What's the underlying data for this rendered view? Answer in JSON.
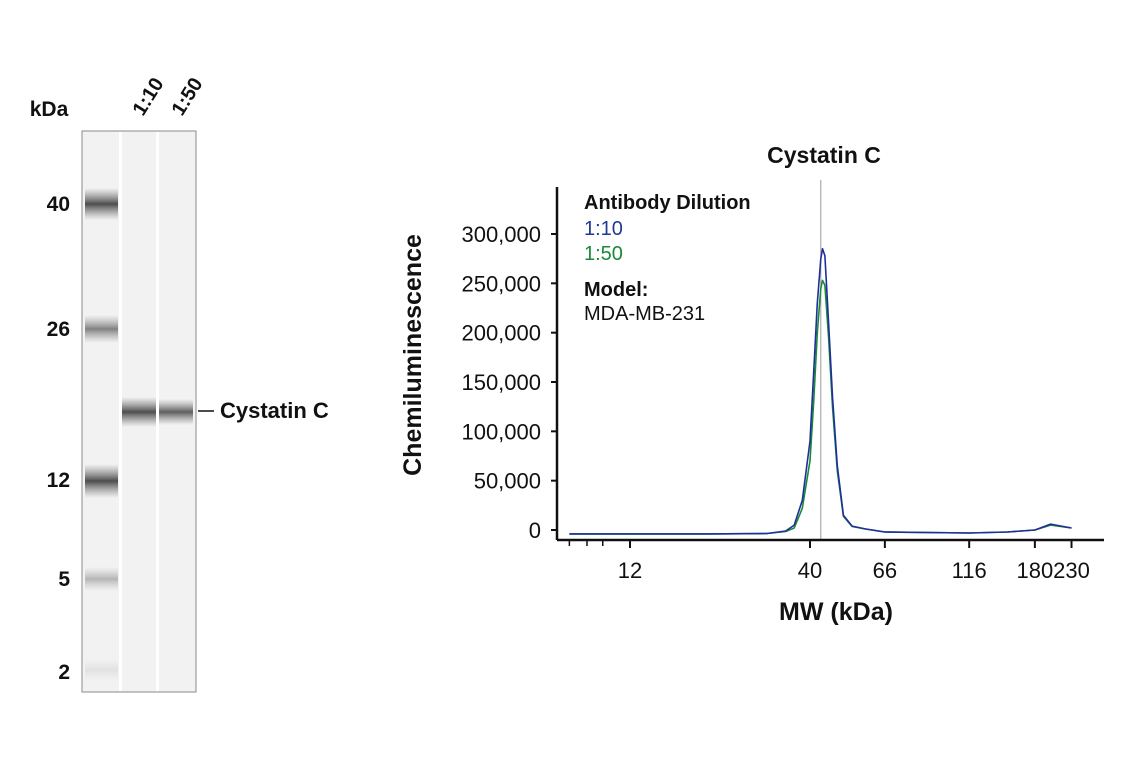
{
  "blot": {
    "unit_label": "kDa",
    "lane_labels": [
      "1:10",
      "1:50"
    ],
    "markers": [
      {
        "label": "40",
        "value": 40
      },
      {
        "label": "26",
        "value": 26
      },
      {
        "label": "12",
        "value": 12
      },
      {
        "label": "5",
        "value": 5
      },
      {
        "label": "2",
        "value": 2
      }
    ],
    "band_label": "Cystatin C"
  },
  "chart_data": {
    "type": "line",
    "title": "Cystatin C",
    "xlabel": "MW (kDa)",
    "ylabel": "Chemiluminescence",
    "x_ticks": [
      "12",
      "40",
      "66",
      "116",
      "180",
      "230"
    ],
    "y_ticks": [
      "0",
      "50,000",
      "100,000",
      "150,000",
      "200,000",
      "250,000",
      "300,000"
    ],
    "ylim": [
      0,
      310000
    ],
    "peak_marker_x": 43,
    "legend": {
      "heading": "Antibody Dilution",
      "model_heading": "Model:",
      "model_value": "MDA-MB-231"
    },
    "series": [
      {
        "name": "1:10",
        "color": "#1f2f9a",
        "points": [
          [
            8,
            -4000
          ],
          [
            20,
            -4000
          ],
          [
            30,
            -3500
          ],
          [
            34,
            -1000
          ],
          [
            36,
            5000
          ],
          [
            38,
            30000
          ],
          [
            40,
            90000
          ],
          [
            41,
            160000
          ],
          [
            42,
            230000
          ],
          [
            43,
            275000
          ],
          [
            43.5,
            285000
          ],
          [
            44.2,
            278000
          ],
          [
            45.3,
            210000
          ],
          [
            46.5,
            135000
          ],
          [
            48,
            65000
          ],
          [
            50,
            15000
          ],
          [
            53,
            4000
          ],
          [
            58,
            1000
          ],
          [
            66,
            -2000
          ],
          [
            116,
            -3000
          ],
          [
            150,
            -2000
          ],
          [
            180,
            0
          ],
          [
            200,
            6000
          ],
          [
            230,
            2000
          ]
        ]
      },
      {
        "name": "1:50",
        "color": "#1a8a3a",
        "points": [
          [
            8,
            -4000
          ],
          [
            20,
            -4000
          ],
          [
            30,
            -3500
          ],
          [
            34,
            -1500
          ],
          [
            36,
            2000
          ],
          [
            38,
            22000
          ],
          [
            40,
            70000
          ],
          [
            41,
            130000
          ],
          [
            42,
            200000
          ],
          [
            43,
            245000
          ],
          [
            43.5,
            253000
          ],
          [
            44.2,
            248000
          ],
          [
            45.3,
            195000
          ],
          [
            46.5,
            125000
          ],
          [
            48,
            60000
          ],
          [
            50,
            14000
          ],
          [
            53,
            3500
          ],
          [
            58,
            1000
          ],
          [
            66,
            -2000
          ],
          [
            116,
            -3000
          ],
          [
            150,
            -2000
          ],
          [
            180,
            0
          ],
          [
            200,
            5000
          ],
          [
            230,
            2000
          ]
        ]
      }
    ]
  }
}
